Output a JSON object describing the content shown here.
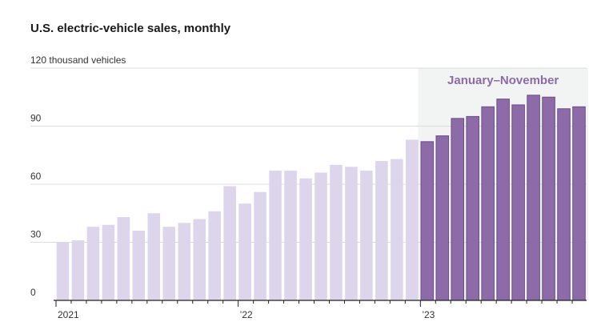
{
  "title": "U.S. electric-vehicle sales, monthly",
  "colors": {
    "bar_past": "#ddd5ec",
    "bar_highlight": "#8c6ba8",
    "bar_highlight_stroke": "#6b4f87",
    "highlight_bg": "#f2f3f3",
    "grid": "#dcdcdc"
  },
  "chart_data": {
    "type": "bar",
    "title": "U.S. electric-vehicle sales, monthly",
    "ylabel": "thousand vehicles",
    "ylim": [
      0,
      120
    ],
    "yticks": [
      0,
      30,
      60,
      90,
      120
    ],
    "ytick_labels": [
      "0",
      "30",
      "60",
      "90",
      "120 thousand vehicles"
    ],
    "x_tick_labels": [
      {
        "index": 0,
        "label": "2021"
      },
      {
        "index": 12,
        "label": "’22"
      },
      {
        "index": 24,
        "label": "’23"
      }
    ],
    "highlight_label": "January–November",
    "highlight_range": [
      24,
      34
    ],
    "categories": [
      "2021-01",
      "2021-02",
      "2021-03",
      "2021-04",
      "2021-05",
      "2021-06",
      "2021-07",
      "2021-08",
      "2021-09",
      "2021-10",
      "2021-11",
      "2021-12",
      "2022-01",
      "2022-02",
      "2022-03",
      "2022-04",
      "2022-05",
      "2022-06",
      "2022-07",
      "2022-08",
      "2022-09",
      "2022-10",
      "2022-11",
      "2022-12",
      "2023-01",
      "2023-02",
      "2023-03",
      "2023-04",
      "2023-05",
      "2023-06",
      "2023-07",
      "2023-08",
      "2023-09",
      "2023-10",
      "2023-11"
    ],
    "values": [
      30,
      31,
      38,
      39,
      43,
      36,
      45,
      38,
      40,
      42,
      46,
      59,
      50,
      56,
      67,
      67,
      63,
      66,
      70,
      69,
      67,
      72,
      73,
      83,
      82,
      85,
      94,
      95,
      100,
      104,
      101,
      106,
      105,
      99,
      100
    ],
    "grid": true
  }
}
